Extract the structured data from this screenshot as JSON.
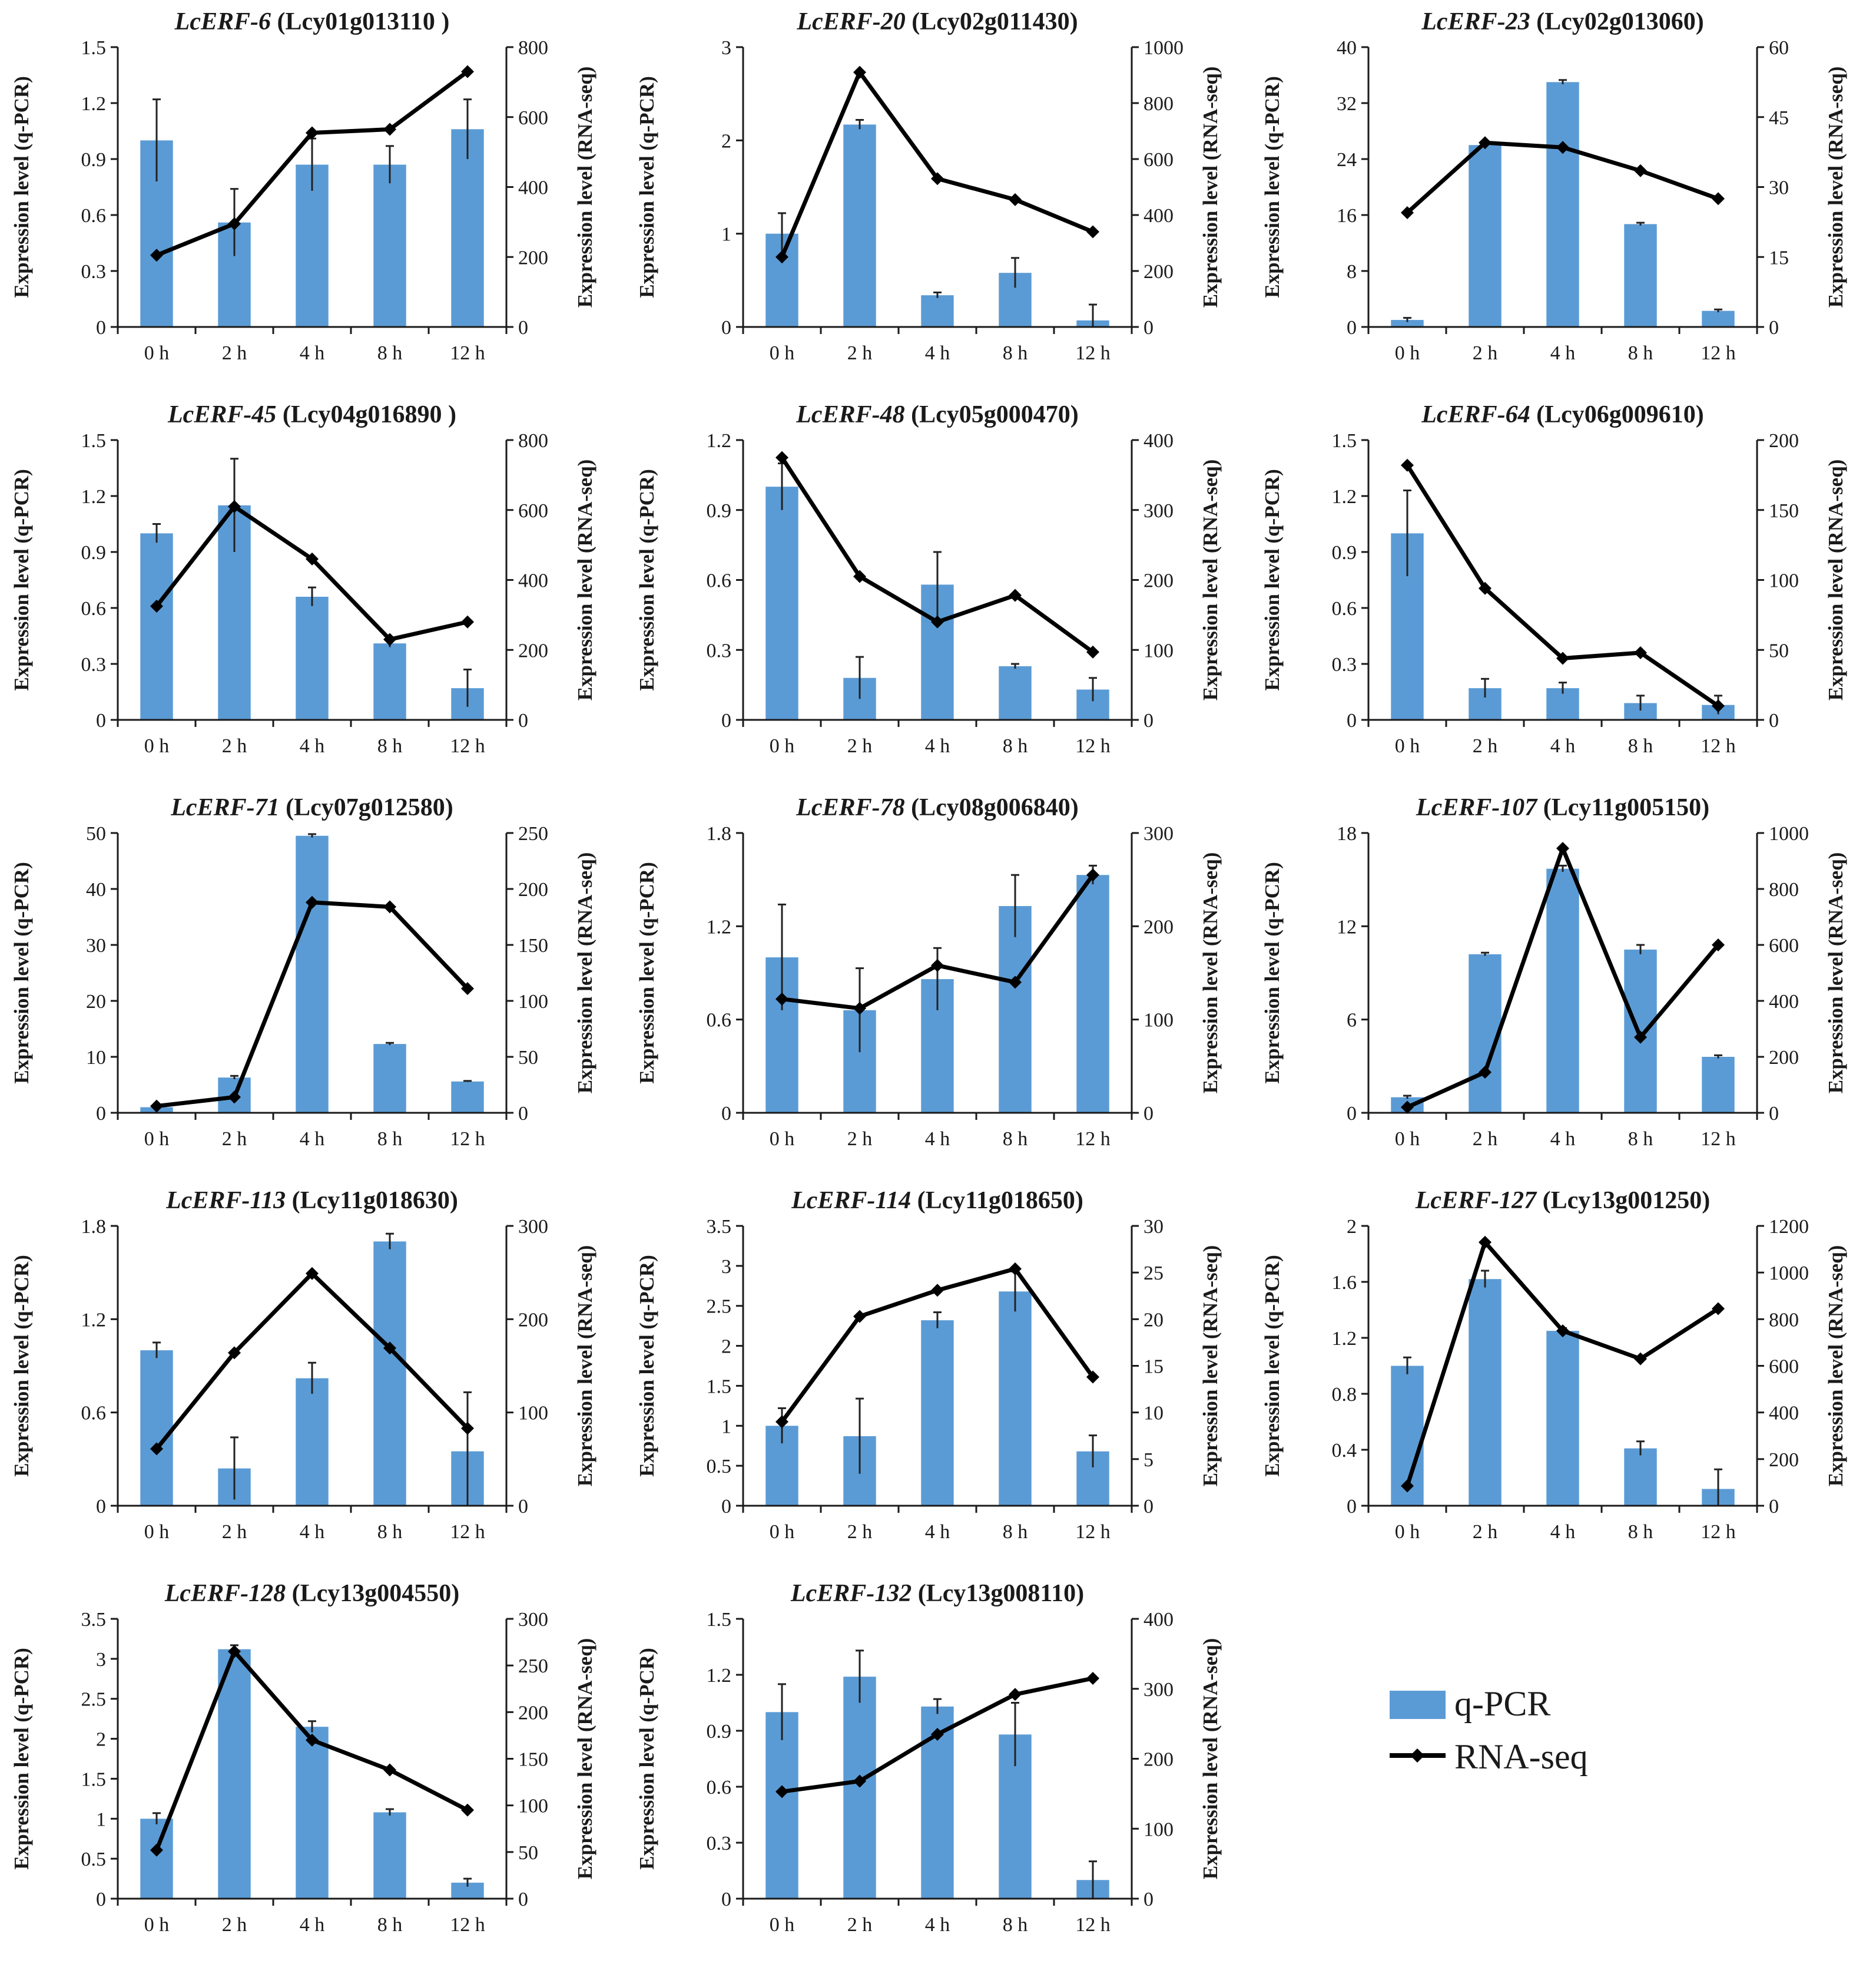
{
  "legend": {
    "bar_label": "q-PCR",
    "line_label": "RNA-seq"
  },
  "colors": {
    "bar": "#5b9bd5",
    "line": "#000000",
    "axis": "#1a1a1a"
  },
  "chart_data": [
    {
      "type": "bar+line",
      "gene": "LcERF-6",
      "id": "(Lcy01g013110 )",
      "categories": [
        "0 h",
        "2 h",
        "4 h",
        "8 h",
        "12 h"
      ],
      "ylabel_left": "Expression level (q-PCR)",
      "ylabel_right": "Expression level (RNA-seq)",
      "left_ticks": [
        0,
        0.3,
        0.6,
        0.9,
        1.2,
        1.5
      ],
      "right_ticks": [
        0,
        200,
        400,
        600,
        800
      ],
      "qpcr": [
        1.0,
        0.56,
        0.87,
        0.87,
        1.06
      ],
      "qpcr_err": [
        0.22,
        0.18,
        0.14,
        0.1,
        0.16
      ],
      "rnaseq": [
        205,
        295,
        555,
        565,
        730
      ]
    },
    {
      "type": "bar+line",
      "gene": "LcERF-20",
      "id": "(Lcy02g011430)",
      "categories": [
        "0 h",
        "2 h",
        "4 h",
        "8 h",
        "12 h"
      ],
      "ylabel_left": "Expression level (q-PCR)",
      "ylabel_right": "Expression level (RNA-seq)",
      "left_ticks": [
        0,
        1,
        2,
        3
      ],
      "right_ticks": [
        0,
        200,
        400,
        600,
        800,
        1000
      ],
      "qpcr": [
        1.0,
        2.17,
        0.34,
        0.58,
        0.07
      ],
      "qpcr_err": [
        0.22,
        0.05,
        0.03,
        0.16,
        0.17
      ],
      "rnaseq": [
        250,
        910,
        530,
        455,
        340
      ]
    },
    {
      "type": "bar+line",
      "gene": "LcERF-23",
      "id": "(Lcy02g013060)",
      "categories": [
        "0 h",
        "2 h",
        "4 h",
        "8 h",
        "12 h"
      ],
      "ylabel_left": "Expression level (q-PCR)",
      "ylabel_right": "Expression level (RNA-seq)",
      "left_ticks": [
        0,
        8,
        16,
        24,
        32,
        40
      ],
      "right_ticks": [
        0,
        15,
        30,
        45,
        60
      ],
      "qpcr": [
        1.0,
        26.0,
        35.0,
        14.7,
        2.3
      ],
      "qpcr_err": [
        0.3,
        0.3,
        0.3,
        0.2,
        0.2
      ],
      "rnaseq": [
        24.5,
        39.5,
        38.5,
        33.5,
        27.5
      ]
    },
    {
      "type": "bar+line",
      "gene": "LcERF-45",
      "id": "(Lcy04g016890 )",
      "categories": [
        "0 h",
        "2 h",
        "4 h",
        "8 h",
        "12 h"
      ],
      "ylabel_left": "Expression level (q-PCR)",
      "ylabel_right": "Expression level (RNA-seq)",
      "left_ticks": [
        0,
        0.3,
        0.6,
        0.9,
        1.2,
        1.5
      ],
      "right_ticks": [
        0,
        200,
        400,
        600,
        800
      ],
      "qpcr": [
        1.0,
        1.15,
        0.66,
        0.41,
        0.17
      ],
      "qpcr_err": [
        0.05,
        0.25,
        0.05,
        0.02,
        0.1
      ],
      "rnaseq": [
        325,
        610,
        460,
        230,
        280
      ]
    },
    {
      "type": "bar+line",
      "gene": "LcERF-48",
      "id": "(Lcy05g000470)",
      "categories": [
        "0 h",
        "2 h",
        "4 h",
        "8 h",
        "12 h"
      ],
      "ylabel_left": "Expression level (q-PCR)",
      "ylabel_right": "Expression level (RNA-seq)",
      "left_ticks": [
        0,
        0.3,
        0.6,
        0.9,
        1.2
      ],
      "right_ticks": [
        0,
        100,
        200,
        300,
        400
      ],
      "qpcr": [
        1.0,
        0.18,
        0.58,
        0.23,
        0.13
      ],
      "qpcr_err": [
        0.1,
        0.09,
        0.14,
        0.01,
        0.05
      ],
      "rnaseq": [
        375,
        205,
        140,
        178,
        97
      ]
    },
    {
      "type": "bar+line",
      "gene": "LcERF-64",
      "id": "(Lcy06g009610)",
      "categories": [
        "0 h",
        "2 h",
        "4 h",
        "8 h",
        "12 h"
      ],
      "ylabel_left": "Expression level (q-PCR)",
      "ylabel_right": "Expression level (RNA-seq)",
      "left_ticks": [
        0,
        0.3,
        0.6,
        0.9,
        1.2,
        1.5
      ],
      "right_ticks": [
        0,
        50,
        100,
        150,
        200
      ],
      "qpcr": [
        1.0,
        0.17,
        0.17,
        0.09,
        0.08
      ],
      "qpcr_err": [
        0.23,
        0.05,
        0.03,
        0.04,
        0.05
      ],
      "rnaseq": [
        182,
        94,
        44,
        48,
        10
      ]
    },
    {
      "type": "bar+line",
      "gene": "LcERF-71",
      "id": "(Lcy07g012580)",
      "categories": [
        "0 h",
        "2 h",
        "4 h",
        "8 h",
        "12 h"
      ],
      "ylabel_left": "Expression level (q-PCR)",
      "ylabel_right": "Expression level (RNA-seq)",
      "left_ticks": [
        0,
        10,
        20,
        30,
        40,
        50
      ],
      "right_ticks": [
        0,
        50,
        100,
        150,
        200,
        250
      ],
      "qpcr": [
        1.0,
        6.3,
        49.5,
        12.3,
        5.6
      ],
      "qpcr_err": [
        0.2,
        0.3,
        0.3,
        0.2,
        0.1
      ],
      "rnaseq": [
        6,
        14,
        188,
        184,
        111
      ]
    },
    {
      "type": "bar+line",
      "gene": "LcERF-78",
      "id": "(Lcy08g006840)",
      "categories": [
        "0 h",
        "2 h",
        "4 h",
        "8 h",
        "12 h"
      ],
      "ylabel_left": "Expression level (q-PCR)",
      "ylabel_right": "Expression level (RNA-seq)",
      "left_ticks": [
        0,
        0.6,
        1.2,
        1.8
      ],
      "right_ticks": [
        0,
        100,
        200,
        300
      ],
      "qpcr": [
        1.0,
        0.66,
        0.86,
        1.33,
        1.53
      ],
      "qpcr_err": [
        0.34,
        0.27,
        0.2,
        0.2,
        0.06
      ],
      "rnaseq": [
        122,
        112,
        158,
        140,
        255
      ]
    },
    {
      "type": "bar+line",
      "gene": "LcERF-107",
      "id": "(Lcy11g005150)",
      "categories": [
        "0 h",
        "2 h",
        "4 h",
        "8 h",
        "12 h"
      ],
      "ylabel_left": "Expression level (q-PCR)",
      "ylabel_right": "Expression level (RNA-seq)",
      "left_ticks": [
        0,
        6,
        12,
        18
      ],
      "right_ticks": [
        0,
        200,
        400,
        600,
        800,
        1000
      ],
      "qpcr": [
        1.0,
        10.2,
        15.7,
        10.5,
        3.6
      ],
      "qpcr_err": [
        0.1,
        0.1,
        0.2,
        0.3,
        0.1
      ],
      "rnaseq": [
        20,
        145,
        945,
        270,
        600
      ]
    },
    {
      "type": "bar+line",
      "gene": "LcERF-113",
      "id": "(Lcy11g018630)",
      "categories": [
        "0 h",
        "2 h",
        "4 h",
        "8 h",
        "12 h"
      ],
      "ylabel_left": "Expression level (q-PCR)",
      "ylabel_right": "Expression level (RNA-seq)",
      "left_ticks": [
        0,
        0.6,
        1.2,
        1.8
      ],
      "right_ticks": [
        0,
        100,
        200,
        300
      ],
      "qpcr": [
        1.0,
        0.24,
        0.82,
        1.7,
        0.35
      ],
      "qpcr_err": [
        0.05,
        0.2,
        0.1,
        0.05,
        0.38
      ],
      "rnaseq": [
        61,
        164,
        249,
        169,
        83
      ]
    },
    {
      "type": "bar+line",
      "gene": "LcERF-114",
      "id": "(Lcy11g018650)",
      "categories": [
        "0 h",
        "2 h",
        "4 h",
        "8 h",
        "12 h"
      ],
      "ylabel_left": "Expression level (q-PCR)",
      "ylabel_right": "Expression level (RNA-seq)",
      "left_ticks": [
        0,
        0.5,
        1,
        1.5,
        2,
        2.5,
        3,
        3.5
      ],
      "right_ticks": [
        0,
        5,
        10,
        15,
        20,
        25,
        30
      ],
      "qpcr": [
        1.0,
        0.87,
        2.32,
        2.68,
        0.68
      ],
      "qpcr_err": [
        0.22,
        0.47,
        0.1,
        0.25,
        0.2
      ],
      "rnaseq": [
        9,
        20.3,
        23.1,
        25.4,
        13.8
      ]
    },
    {
      "type": "bar+line",
      "gene": "LcERF-127",
      "id": "(Lcy13g001250)",
      "categories": [
        "0 h",
        "2 h",
        "4 h",
        "8 h",
        "12 h"
      ],
      "ylabel_left": "Expression level (q-PCR)",
      "ylabel_right": "Expression level (RNA-seq)",
      "left_ticks": [
        0,
        0.4,
        0.8,
        1.2,
        1.6,
        2
      ],
      "right_ticks": [
        0,
        200,
        400,
        600,
        800,
        1000,
        1200
      ],
      "qpcr": [
        1.0,
        1.62,
        1.25,
        0.41,
        0.12
      ],
      "qpcr_err": [
        0.06,
        0.06,
        0.02,
        0.05,
        0.14
      ],
      "rnaseq": [
        85,
        1130,
        750,
        630,
        845
      ]
    },
    {
      "type": "bar+line",
      "gene": "LcERF-128",
      "id": "(Lcy13g004550)",
      "categories": [
        "0 h",
        "2 h",
        "4 h",
        "8 h",
        "12 h"
      ],
      "ylabel_left": "Expression level (q-PCR)",
      "ylabel_right": "Expression level (RNA-seq)",
      "left_ticks": [
        0,
        0.5,
        1,
        1.5,
        2,
        2.5,
        3,
        3.5
      ],
      "right_ticks": [
        0,
        50,
        100,
        150,
        200,
        250,
        300
      ],
      "qpcr": [
        1.0,
        3.12,
        2.15,
        1.08,
        0.2
      ],
      "qpcr_err": [
        0.07,
        0.05,
        0.07,
        0.04,
        0.05
      ],
      "rnaseq": [
        52,
        265,
        170,
        138,
        95
      ]
    },
    {
      "type": "bar+line",
      "gene": "LcERF-132",
      "id": "(Lcy13g008110)",
      "categories": [
        "0 h",
        "2 h",
        "4 h",
        "8 h",
        "12 h"
      ],
      "ylabel_left": "Expression level (q-PCR)",
      "ylabel_right": "Expression level (RNA-seq)",
      "left_ticks": [
        0,
        0.3,
        0.6,
        0.9,
        1.2,
        1.5
      ],
      "right_ticks": [
        0,
        100,
        200,
        300,
        400
      ],
      "qpcr": [
        1.0,
        1.19,
        1.03,
        0.88,
        0.1
      ],
      "qpcr_err": [
        0.15,
        0.14,
        0.04,
        0.17,
        0.1
      ],
      "rnaseq": [
        153,
        168,
        235,
        292,
        315
      ]
    }
  ]
}
